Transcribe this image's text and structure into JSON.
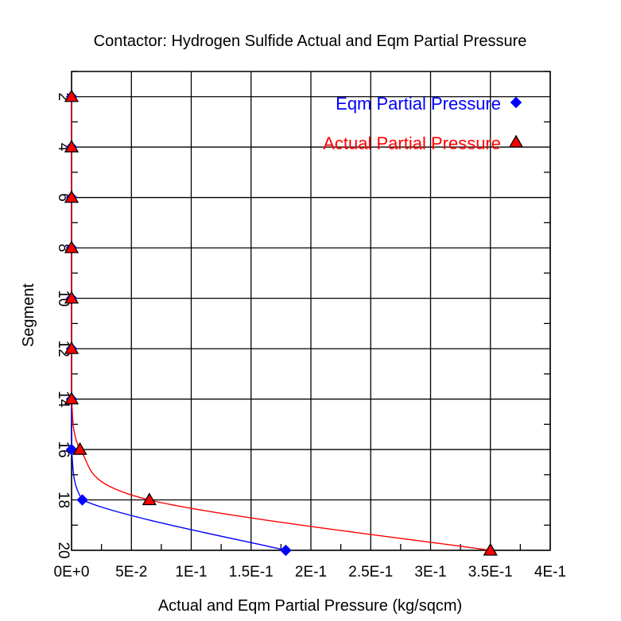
{
  "chart_data": {
    "type": "line",
    "title": "Contactor: Hydrogen Sulfide Actual and Eqm Partial Pressure",
    "xlabel": "Actual and Eqm Partial Pressure (kg/sqcm)",
    "ylabel": "Segment",
    "xlim": [
      0,
      0.4
    ],
    "ylim": [
      20,
      1
    ],
    "x_ticks": [
      0,
      0.05,
      0.1,
      0.15,
      0.2,
      0.25,
      0.3,
      0.35,
      0.4
    ],
    "x_tick_labels": [
      "0E+0",
      "5E-2",
      "1E-1",
      "1.5E-1",
      "2E-1",
      "2.5E-1",
      "3E-1",
      "3.5E-1",
      "4E-1"
    ],
    "y_ticks": [
      2,
      4,
      6,
      8,
      10,
      12,
      14,
      16,
      18,
      20
    ],
    "y_tick_labels": [
      "2",
      "4",
      "6",
      "8",
      "10",
      "12",
      "14",
      "16",
      "18",
      "20"
    ],
    "grid": true,
    "legend_position": "top-right",
    "series": [
      {
        "name": "Eqm Partial Pressure",
        "color": "#0000ff",
        "marker": "diamond",
        "points": [
          {
            "x": 0.0,
            "y": 2
          },
          {
            "x": 0.0,
            "y": 4
          },
          {
            "x": 0.0,
            "y": 6
          },
          {
            "x": 0.0,
            "y": 8
          },
          {
            "x": 0.0,
            "y": 10
          },
          {
            "x": 0.0,
            "y": 12
          },
          {
            "x": 0.0,
            "y": 14
          },
          {
            "x": 0.0,
            "y": 16
          },
          {
            "x": 0.009,
            "y": 18
          },
          {
            "x": 0.179,
            "y": 20
          }
        ]
      },
      {
        "name": "Actual Partial Pressure",
        "color": "#ff0000",
        "marker": "triangle",
        "points": [
          {
            "x": 0.0,
            "y": 2
          },
          {
            "x": 0.0,
            "y": 4
          },
          {
            "x": 0.0,
            "y": 6
          },
          {
            "x": 0.0,
            "y": 8
          },
          {
            "x": 0.0,
            "y": 10
          },
          {
            "x": 0.0,
            "y": 12
          },
          {
            "x": 0.0,
            "y": 14
          },
          {
            "x": 0.007,
            "y": 16
          },
          {
            "x": 0.065,
            "y": 18
          },
          {
            "x": 0.35,
            "y": 20
          }
        ]
      }
    ]
  }
}
